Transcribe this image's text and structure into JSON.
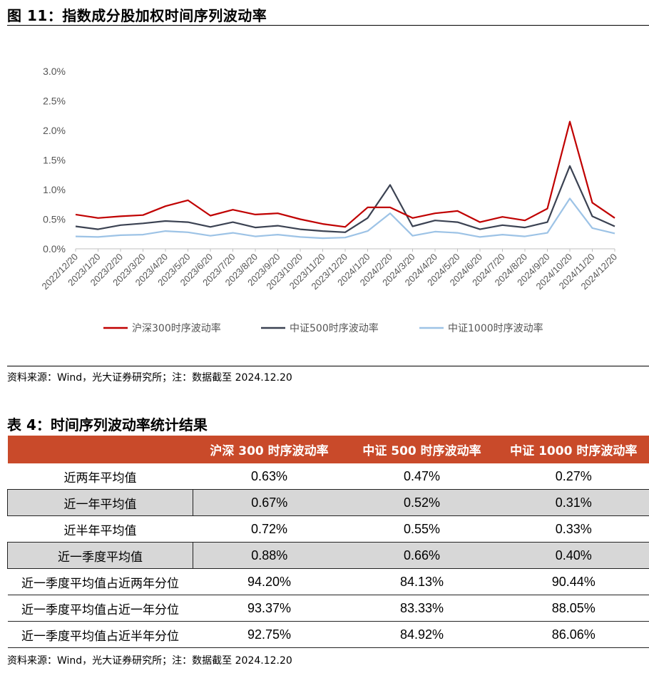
{
  "figure": {
    "title": "图 11：指数成分股加权时间序列波动率",
    "source": "资料来源：Wind，光大证券研究所；注：数据截至 2024.12.20"
  },
  "chart_data": {
    "type": "line",
    "title": "",
    "xlabel": "",
    "ylabel": "",
    "ylim": [
      0,
      0.03
    ],
    "y_ticks": [
      "3.0%",
      "2.5%",
      "2.0%",
      "1.5%",
      "1.0%",
      "0.5%",
      "0.0%"
    ],
    "x": [
      "2022/12/20",
      "2023/1/20",
      "2023/2/20",
      "2023/3/20",
      "2023/4/20",
      "2023/5/20",
      "2023/6/20",
      "2023/7/20",
      "2023/8/20",
      "2023/9/20",
      "2023/10/20",
      "2023/11/20",
      "2023/12/20",
      "2024/1/20",
      "2024/2/20",
      "2024/3/20",
      "2024/4/20",
      "2024/5/20",
      "2024/6/20",
      "2024/7/20",
      "2024/8/20",
      "2024/9/20",
      "2024/10/20",
      "2024/11/20",
      "2024/12/20"
    ],
    "legend_position": "bottom",
    "series": [
      {
        "name": "沪深300时序波动率",
        "color": "#c00000",
        "values": [
          0.0058,
          0.0052,
          0.0055,
          0.0057,
          0.0072,
          0.0082,
          0.0056,
          0.0066,
          0.0058,
          0.006,
          0.005,
          0.0042,
          0.0037,
          0.007,
          0.007,
          0.0052,
          0.006,
          0.0064,
          0.0045,
          0.0054,
          0.0048,
          0.0068,
          0.0215,
          0.0078,
          0.0052
        ]
      },
      {
        "name": "中证500时序波动率",
        "color": "#3b4252",
        "values": [
          0.0038,
          0.0033,
          0.004,
          0.0043,
          0.0047,
          0.0045,
          0.0037,
          0.0045,
          0.0036,
          0.0039,
          0.0033,
          0.003,
          0.0028,
          0.0052,
          0.0108,
          0.0038,
          0.0048,
          0.0045,
          0.0033,
          0.004,
          0.0036,
          0.0045,
          0.014,
          0.0055,
          0.0038
        ]
      },
      {
        "name": "中证1000时序波动率",
        "color": "#9dc3e6",
        "values": [
          0.0021,
          0.002,
          0.0023,
          0.0024,
          0.003,
          0.0028,
          0.0022,
          0.0027,
          0.0021,
          0.0024,
          0.002,
          0.0018,
          0.0019,
          0.003,
          0.006,
          0.0022,
          0.0029,
          0.0027,
          0.002,
          0.0024,
          0.0021,
          0.0027,
          0.0085,
          0.0035,
          0.0026
        ]
      }
    ]
  },
  "table": {
    "title": "表 4：时间序列波动率统计结果",
    "headers": [
      "",
      "沪深 300 时序波动率",
      "中证 500 时序波动率",
      "中证 1000 时序波动率"
    ],
    "rows": [
      [
        "近两年平均值",
        "0.63%",
        "0.47%",
        "0.27%"
      ],
      [
        "近一年平均值",
        "0.67%",
        "0.52%",
        "0.31%"
      ],
      [
        "近半年平均值",
        "0.72%",
        "0.55%",
        "0.33%"
      ],
      [
        "近一季度平均值",
        "0.88%",
        "0.66%",
        "0.40%"
      ],
      [
        "近一季度平均值占近两年分位",
        "94.20%",
        "84.13%",
        "90.44%"
      ],
      [
        "近一季度平均值占近一年分位",
        "93.37%",
        "83.33%",
        "88.05%"
      ],
      [
        "近一季度平均值占近半年分位",
        "92.75%",
        "84.92%",
        "86.06%"
      ]
    ],
    "source": "资料来源：Wind，光大证券研究所；注：数据截至 2024.12.20"
  }
}
